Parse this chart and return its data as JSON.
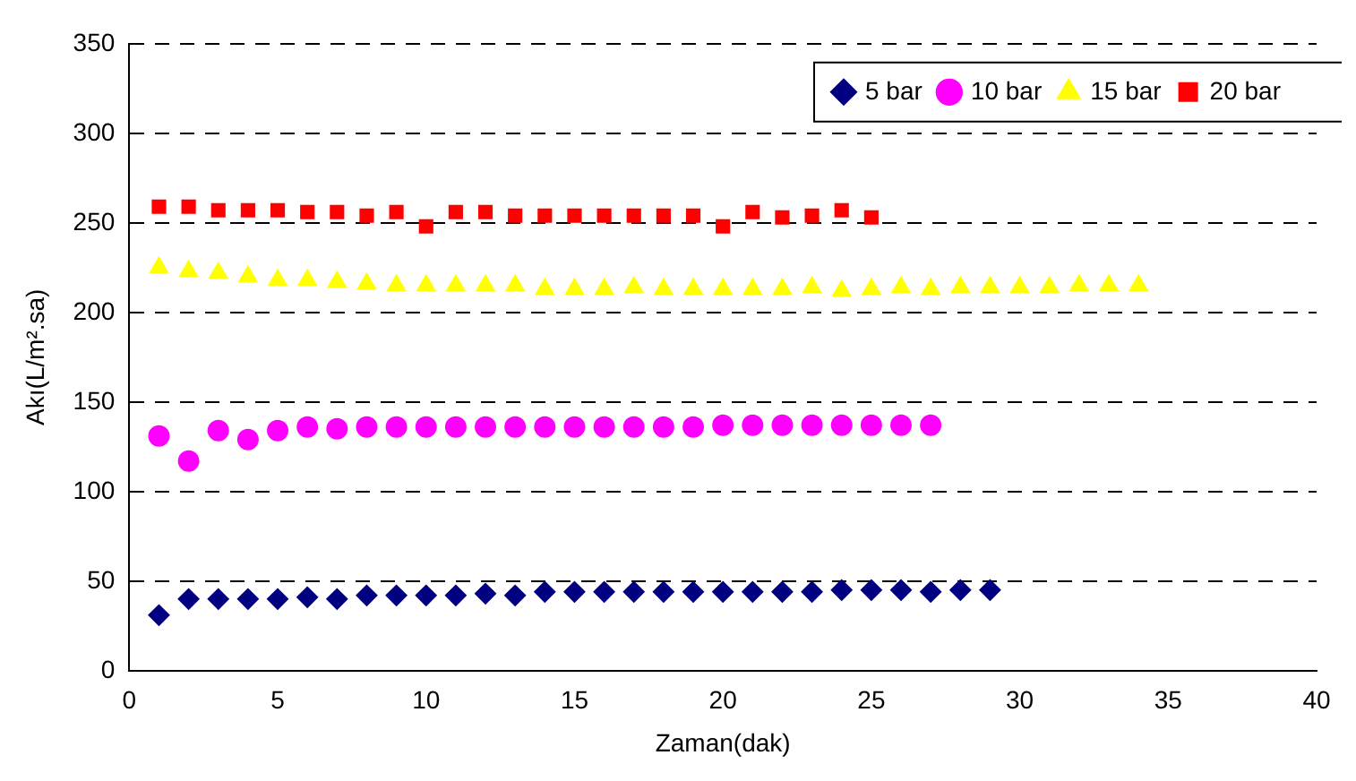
{
  "chart_data": {
    "type": "scatter",
    "xlabel": "Zaman(dak)",
    "ylabel": "Akı(L/m².sa)",
    "xlim": [
      0,
      40
    ],
    "xticks": [
      0,
      5,
      10,
      15,
      20,
      25,
      30,
      35,
      40
    ],
    "ylim": [
      0,
      350
    ],
    "yticks": [
      0,
      50,
      100,
      150,
      200,
      250,
      300,
      350
    ],
    "grid": "y",
    "legend": "top right",
    "series": [
      {
        "name": "5 bar",
        "color": "#000080",
        "marker": "diamond",
        "x": [
          1,
          2,
          3,
          4,
          5,
          6,
          7,
          8,
          9,
          10,
          11,
          12,
          13,
          14,
          15,
          16,
          17,
          18,
          19,
          20,
          21,
          22,
          23,
          24,
          25,
          26,
          27,
          28,
          29
        ],
        "values": [
          31,
          40,
          40,
          40,
          40,
          41,
          40,
          42,
          42,
          42,
          42,
          43,
          42,
          44,
          44,
          44,
          44,
          44,
          44,
          44,
          44,
          44,
          44,
          45,
          45,
          45,
          44,
          45,
          45
        ]
      },
      {
        "name": "10 bar",
        "color": "#ff00ff",
        "marker": "circle",
        "x": [
          1,
          2,
          3,
          4,
          5,
          6,
          7,
          8,
          9,
          10,
          11,
          12,
          13,
          14,
          15,
          16,
          17,
          18,
          19,
          20,
          21,
          22,
          23,
          24,
          25,
          26,
          27
        ],
        "values": [
          131,
          117,
          134,
          129,
          134,
          136,
          135,
          136,
          136,
          136,
          136,
          136,
          136,
          136,
          136,
          136,
          136,
          136,
          136,
          137,
          137,
          137,
          137,
          137,
          137,
          137,
          137
        ]
      },
      {
        "name": "15 bar",
        "color": "#ffff00",
        "marker": "triangle",
        "x": [
          1,
          2,
          3,
          4,
          5,
          6,
          7,
          8,
          9,
          10,
          11,
          12,
          13,
          14,
          15,
          16,
          17,
          18,
          19,
          20,
          21,
          22,
          23,
          24,
          25,
          26,
          27,
          28,
          29,
          30,
          31,
          32,
          33,
          34
        ],
        "values": [
          225,
          223,
          222,
          220,
          218,
          218,
          217,
          216,
          215,
          215,
          215,
          215,
          215,
          213,
          213,
          213,
          214,
          213,
          213,
          213,
          213,
          213,
          214,
          212,
          213,
          214,
          213,
          214,
          214,
          214,
          214,
          215,
          215,
          215
        ]
      },
      {
        "name": "20 bar",
        "color": "#ff0000",
        "marker": "square",
        "x": [
          1,
          2,
          3,
          4,
          5,
          6,
          7,
          8,
          9,
          10,
          11,
          12,
          13,
          14,
          15,
          16,
          17,
          18,
          19,
          20,
          21,
          22,
          23,
          24,
          25
        ],
        "values": [
          259,
          259,
          257,
          257,
          257,
          256,
          256,
          254,
          256,
          248,
          256,
          256,
          254,
          254,
          254,
          254,
          254,
          254,
          254,
          248,
          256,
          253,
          254,
          257,
          253
        ]
      }
    ]
  }
}
